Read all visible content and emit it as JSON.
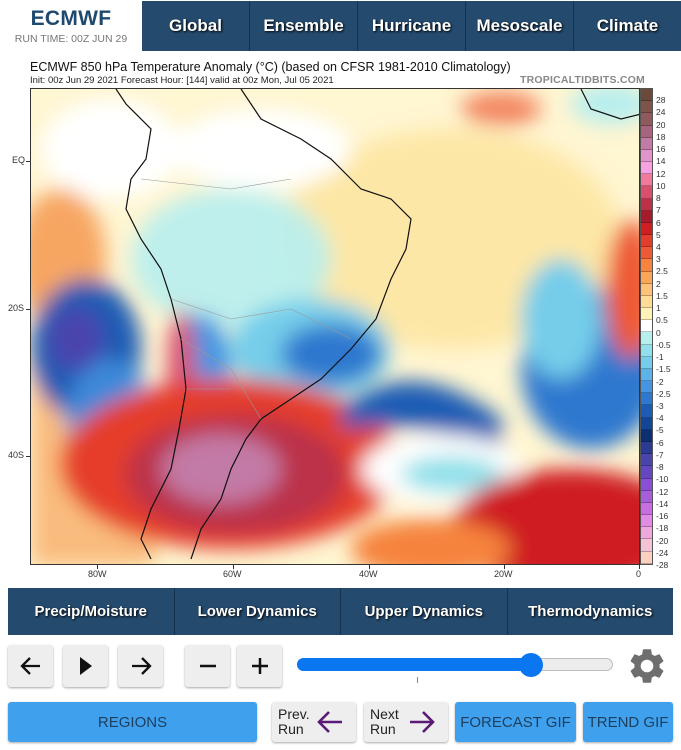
{
  "header": {
    "brand": "ECMWF",
    "run_time": "RUN TIME: 00Z JUN 29",
    "nav": [
      "Global",
      "Ensemble",
      "Hurricane",
      "Mesoscale",
      "Climate"
    ]
  },
  "map": {
    "title": "ECMWF 850 hPa Temperature Anomaly (°C) (based on CFSR 1981-2010 Climatology)",
    "subtitle": "Init: 00z Jun 29 2021   Forecast Hour: [144]   valid at 00z Mon, Jul 05 2021",
    "credit": "TROPICALTIDBITS.COM",
    "lat_labels": [
      "EQ",
      "20S",
      "40S"
    ],
    "lon_labels": [
      "80W",
      "60W",
      "40W",
      "20W",
      "0"
    ]
  },
  "colorbar": {
    "labels": [
      "28",
      "24",
      "20",
      "18",
      "16",
      "14",
      "12",
      "10",
      "8",
      "7",
      "6",
      "5",
      "4",
      "3",
      "2.5",
      "2",
      "1.5",
      "1",
      "0.5",
      "0",
      "-0.5",
      "-1",
      "-1.5",
      "-2",
      "-2.5",
      "-3",
      "-4",
      "-5",
      "-6",
      "-7",
      "-8",
      "-10",
      "-12",
      "-14",
      "-16",
      "-18",
      "-20",
      "-24",
      "-28"
    ],
    "colors": [
      "#6b4a3a",
      "#7e5448",
      "#8f5a5e",
      "#a8647f",
      "#c27aa6",
      "#e295cc",
      "#f6a2e2",
      "#f07a9c",
      "#d8506e",
      "#bb3148",
      "#a51d2d",
      "#cf1f23",
      "#e53d2c",
      "#ee5a35",
      "#f6833e",
      "#f9a659",
      "#fdc27a",
      "#fedc96",
      "#fff1b8",
      "#ffffff",
      "#b7eeee",
      "#8fe0ea",
      "#74cdea",
      "#5cb3ea",
      "#4595e2",
      "#2e78cf",
      "#1d5cb4",
      "#124696",
      "#0b3072",
      "#2b3a93",
      "#4a45ad",
      "#6547c1",
      "#8a4fd4",
      "#a65ed9",
      "#c86de2",
      "#e18be4",
      "#eea9dc",
      "#f5c3d6",
      "#fcd1c0"
    ]
  },
  "subnav": [
    "Precip/Moisture",
    "Lower Dynamics",
    "Upper Dynamics",
    "Thermodynamics"
  ],
  "controls": {
    "prev_frame": "previous-frame",
    "play": "play",
    "next_frame": "next-frame",
    "zoom_out": "zoom-out",
    "zoom_in": "zoom-in",
    "slider_percent": 74,
    "regions": "REGIONS",
    "prev_run": [
      "Prev.",
      "Run"
    ],
    "next_run": [
      "Next",
      "Run"
    ],
    "forecast_gif": "FORECAST GIF",
    "trend_gif": "TREND GIF"
  }
}
